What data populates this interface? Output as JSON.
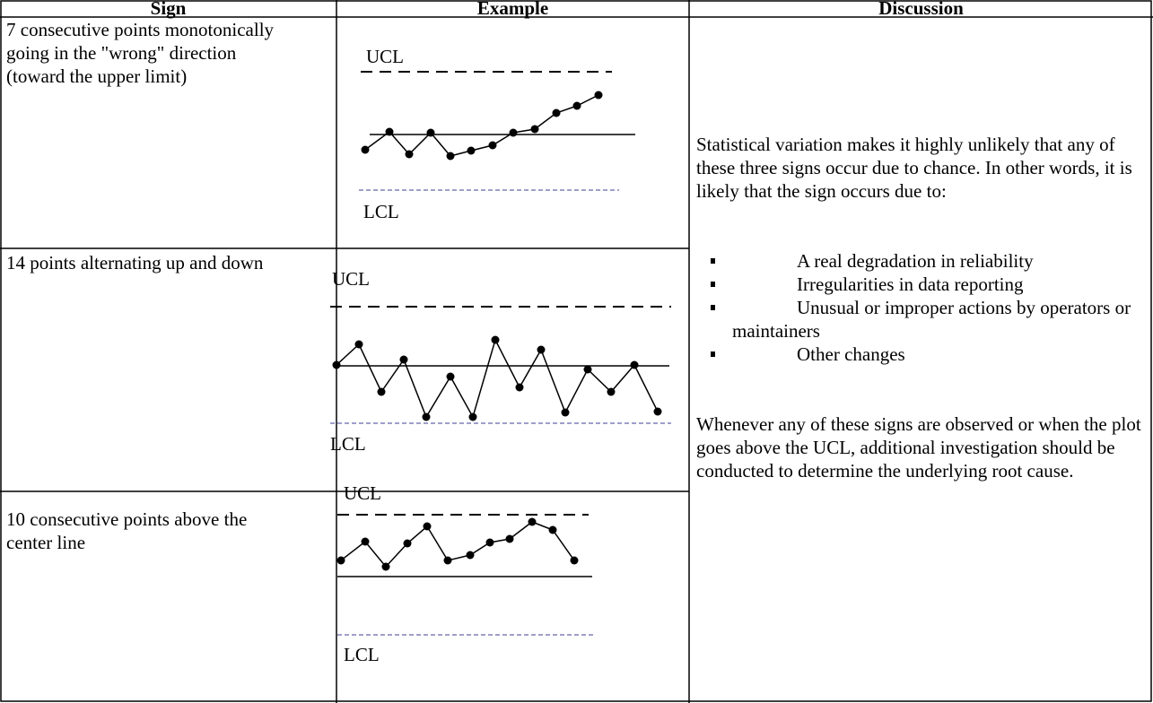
{
  "table": {
    "headers": [
      "Sign",
      "Example",
      "Discussion"
    ],
    "signs": [
      "7 consecutive points monotonically going in the \"wrong\" direction (toward the upper limit)",
      "14 points alternating up and down",
      "10 consecutive points above the center line"
    ],
    "examples": [
      {
        "upper": "UCL",
        "lower": "LCL"
      },
      {
        "upper": "UCL",
        "lower": "LCL"
      },
      {
        "upper": "UCL",
        "lower": "LCL"
      }
    ],
    "discussion": {
      "intro": "Statistical variation makes it highly unlikely that any of these three signs occur due to chance.  In other words, it is likely that the sign occurs due to:",
      "bullets": [
        "A real degradation in reliability",
        "Irregularities in data reporting",
        "Unusual or improper actions by operators or maintainers",
        "Other changes"
      ],
      "closing": "Whenever any of these signs are observed or when the plot goes above the UCL, additional investigation should be conducted to determine the underlying root cause."
    }
  }
}
